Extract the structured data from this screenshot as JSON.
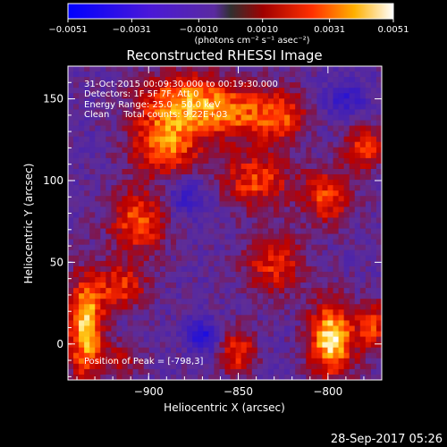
{
  "chart_data": {
    "type": "heatmap",
    "title": "Reconstructed RHESSI Image",
    "xlabel": "Heliocentric X (arcsec)",
    "ylabel": "Heliocentric Y (arcsec)",
    "xlim": [
      -945,
      -770
    ],
    "ylim": [
      -22,
      170
    ],
    "x_ticks": [
      -900,
      -850,
      -800
    ],
    "y_ticks": [
      0,
      50,
      100,
      150
    ],
    "x_tick_labels": [
      "−900",
      "−850",
      "−800"
    ],
    "y_tick_labels": [
      "0",
      "50",
      "100",
      "150"
    ],
    "colorbar": {
      "range": [
        -0.0051,
        0.0051
      ],
      "tick_labels": [
        "−0.0051",
        "−0.0031",
        "−0.0010",
        "0.0010",
        "0.0031",
        "0.0051"
      ],
      "unit_label": "(photons cm⁻² s⁻¹ asec⁻²)"
    },
    "annotations": [
      "31-Oct-2015 00:09:30.000 to 00:19:30.000",
      "Detectors: 1F 5F 7F, Att 0",
      "Energy Range: 25.0 - 50.0 keV",
      "Clean     Total counts: 9.22E+03"
    ],
    "peak_label": "Position of Peak = [-798,3]",
    "blobs": [
      {
        "x": -935,
        "y": 10,
        "sx": 7,
        "sy": 22,
        "a": 0.95
      },
      {
        "x": -915,
        "y": 35,
        "sx": 10,
        "sy": 10,
        "a": 0.55
      },
      {
        "x": -905,
        "y": 75,
        "sx": 12,
        "sy": 14,
        "a": 0.65
      },
      {
        "x": -890,
        "y": 122,
        "sx": 14,
        "sy": 14,
        "a": 0.75
      },
      {
        "x": -880,
        "y": 150,
        "sx": 18,
        "sy": 12,
        "a": 0.7
      },
      {
        "x": -850,
        "y": 140,
        "sx": 16,
        "sy": 12,
        "a": 0.55
      },
      {
        "x": -840,
        "y": 100,
        "sx": 14,
        "sy": 12,
        "a": 0.6
      },
      {
        "x": -825,
        "y": 140,
        "sx": 10,
        "sy": 12,
        "a": 0.5
      },
      {
        "x": -830,
        "y": 50,
        "sx": 12,
        "sy": 14,
        "a": 0.55
      },
      {
        "x": -850,
        "y": -5,
        "sx": 7,
        "sy": 10,
        "a": 0.6
      },
      {
        "x": -798,
        "y": 3,
        "sx": 9,
        "sy": 16,
        "a": 1.0
      },
      {
        "x": -800,
        "y": 90,
        "sx": 10,
        "sy": 12,
        "a": 0.6
      },
      {
        "x": -780,
        "y": 120,
        "sx": 8,
        "sy": 10,
        "a": 0.6
      },
      {
        "x": -775,
        "y": 10,
        "sx": 6,
        "sy": 12,
        "a": 0.55
      },
      {
        "x": -915,
        "y": -10,
        "sx": 8,
        "sy": 8,
        "a": 0.35
      },
      {
        "x": -870,
        "y": 5,
        "sx": 6,
        "sy": 7,
        "a": -0.55
      },
      {
        "x": -790,
        "y": 150,
        "sx": 8,
        "sy": 8,
        "a": -0.4
      },
      {
        "x": -880,
        "y": 90,
        "sx": 10,
        "sy": 10,
        "a": -0.35
      }
    ]
  },
  "footer": {
    "timestamp": "28-Sep-2017 05:26"
  }
}
